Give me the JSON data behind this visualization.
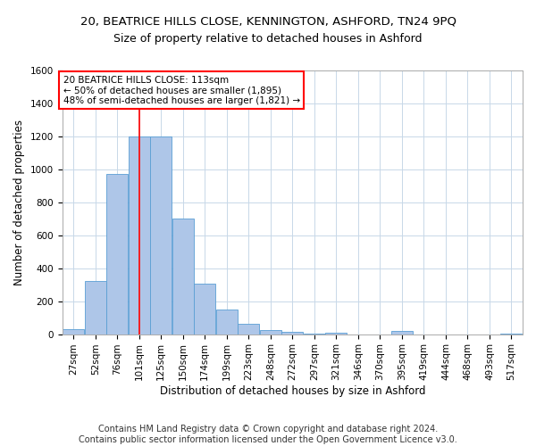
{
  "title1": "20, BEATRICE HILLS CLOSE, KENNINGTON, ASHFORD, TN24 9PQ",
  "title2": "Size of property relative to detached houses in Ashford",
  "xlabel": "Distribution of detached houses by size in Ashford",
  "ylabel": "Number of detached properties",
  "footer1": "Contains HM Land Registry data © Crown copyright and database right 2024.",
  "footer2": "Contains public sector information licensed under the Open Government Licence v3.0.",
  "annotation_line1": "20 BEATRICE HILLS CLOSE: 113sqm",
  "annotation_line2": "← 50% of detached houses are smaller (1,895)",
  "annotation_line3": "48% of semi-detached houses are larger (1,821) →",
  "bar_color": "#aec6e8",
  "bar_edge_color": "#5a9fd4",
  "red_line_x": 113,
  "categories": [
    "27sqm",
    "52sqm",
    "76sqm",
    "101sqm",
    "125sqm",
    "150sqm",
    "174sqm",
    "199sqm",
    "223sqm",
    "248sqm",
    "272sqm",
    "297sqm",
    "321sqm",
    "346sqm",
    "370sqm",
    "395sqm",
    "419sqm",
    "444sqm",
    "468sqm",
    "493sqm",
    "517sqm"
  ],
  "bin_starts": [
    27,
    52,
    76,
    101,
    125,
    150,
    174,
    199,
    223,
    248,
    272,
    297,
    321,
    346,
    370,
    395,
    419,
    444,
    468,
    493,
    517
  ],
  "bin_width": 25,
  "values": [
    30,
    320,
    970,
    1200,
    1200,
    700,
    305,
    150,
    65,
    25,
    15,
    5,
    10,
    0,
    0,
    20,
    0,
    0,
    0,
    0,
    5
  ],
  "ylim": [
    0,
    1600
  ],
  "yticks": [
    0,
    200,
    400,
    600,
    800,
    1000,
    1200,
    1400,
    1600
  ],
  "background_color": "#ffffff",
  "grid_color": "#c8d8e8",
  "title_fontsize": 9.5,
  "subtitle_fontsize": 9,
  "axis_label_fontsize": 8.5,
  "tick_fontsize": 7.5,
  "footer_fontsize": 7,
  "annotation_fontsize": 7.5
}
